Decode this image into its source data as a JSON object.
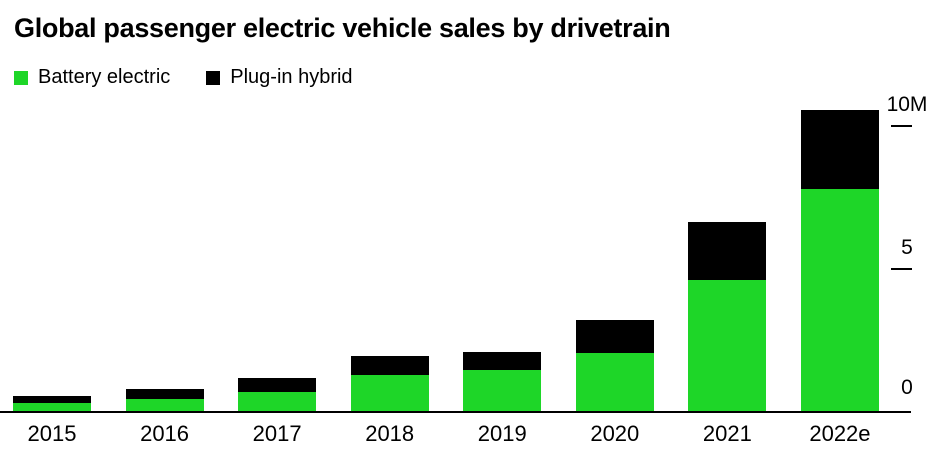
{
  "title": "Global passenger electric vehicle sales by drivetrain",
  "chart_data": {
    "type": "bar",
    "stacked": true,
    "title": "Global passenger electric vehicle sales by drivetrain",
    "categories": [
      "2015",
      "2016",
      "2017",
      "2018",
      "2019",
      "2020",
      "2021",
      "2022e"
    ],
    "series": [
      {
        "name": "Battery electric",
        "color": "#1ed628",
        "values": [
          0.3,
          0.45,
          0.7,
          1.3,
          1.45,
          2.05,
          4.6,
          7.75
        ]
      },
      {
        "name": "Plug-in hybrid",
        "color": "#000000",
        "values": [
          0.25,
          0.35,
          0.5,
          0.65,
          0.65,
          1.15,
          2.0,
          2.75
        ]
      }
    ],
    "ylim": [
      0,
      10.5
    ],
    "yticks": [
      {
        "value": 0,
        "label": "0"
      },
      {
        "value": 5,
        "label": "5"
      },
      {
        "value": 10,
        "label": "10M"
      }
    ],
    "xlabel": "",
    "ylabel": "",
    "grid": false,
    "legend_position": "top-left",
    "axis_color": "#000000",
    "background": "#ffffff"
  }
}
